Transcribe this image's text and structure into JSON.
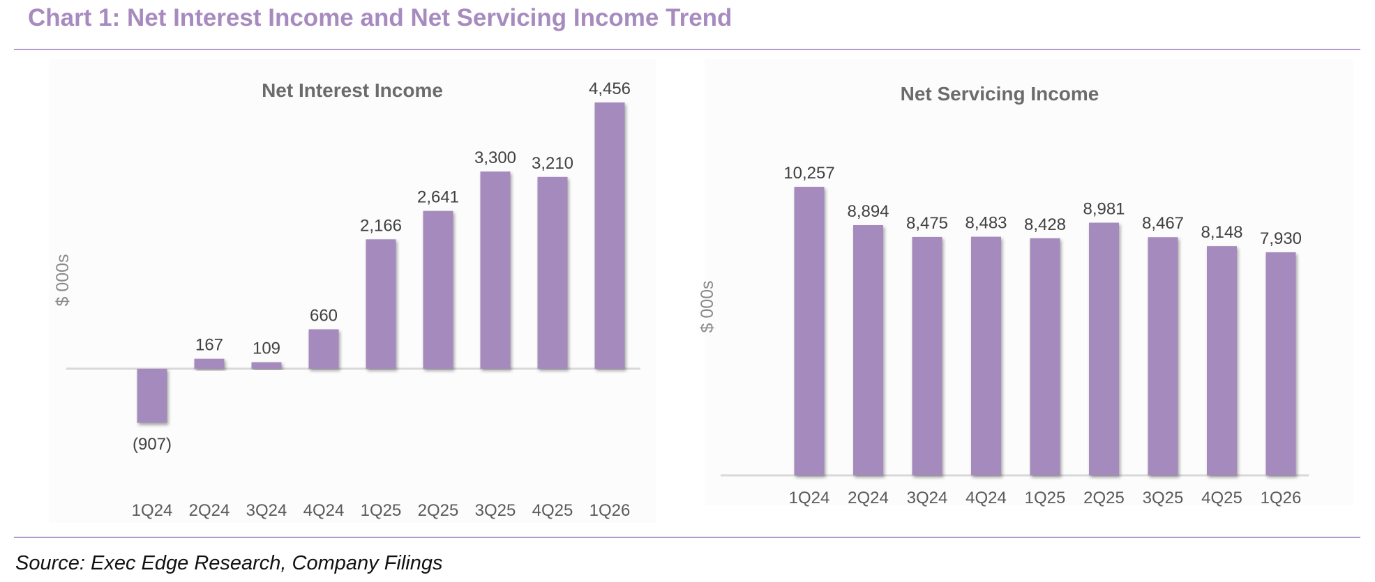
{
  "page": {
    "title": "Chart 1: Net Interest Income and Net Servicing Income Trend",
    "source": "Source: Exec Edge Research, Company Filings",
    "accent_color": "#a78bbf",
    "bar_color": "#a58bbd"
  },
  "chart_data": [
    {
      "type": "bar",
      "title": "Net Interest Income",
      "ylabel": "$ 000s",
      "xlabel": "",
      "categories": [
        "1Q24",
        "2Q24",
        "3Q24",
        "4Q24",
        "1Q25",
        "2Q25",
        "3Q25",
        "4Q25",
        "1Q26"
      ],
      "values": [
        -907,
        167,
        109,
        660,
        2166,
        2641,
        3300,
        3210,
        4456
      ],
      "labels": [
        "(907)",
        "167",
        "109",
        "660",
        "2,166",
        "2,641",
        "3,300",
        "3,210",
        "4,456"
      ],
      "ylim": [
        -907,
        4456
      ],
      "grid": false,
      "legend": "none"
    },
    {
      "type": "bar",
      "title": "Net Servicing Income",
      "ylabel": "$ 000s",
      "xlabel": "",
      "categories": [
        "1Q24",
        "2Q24",
        "3Q24",
        "4Q24",
        "1Q25",
        "2Q25",
        "3Q25",
        "4Q25",
        "1Q26"
      ],
      "values": [
        10257,
        8894,
        8475,
        8483,
        8428,
        8981,
        8467,
        8148,
        7930
      ],
      "labels": [
        "10,257",
        "8,894",
        "8,475",
        "8,483",
        "8,428",
        "8,981",
        "8,467",
        "8,148",
        "7,930"
      ],
      "ylim": [
        0,
        10257
      ],
      "grid": false,
      "legend": "none"
    }
  ]
}
